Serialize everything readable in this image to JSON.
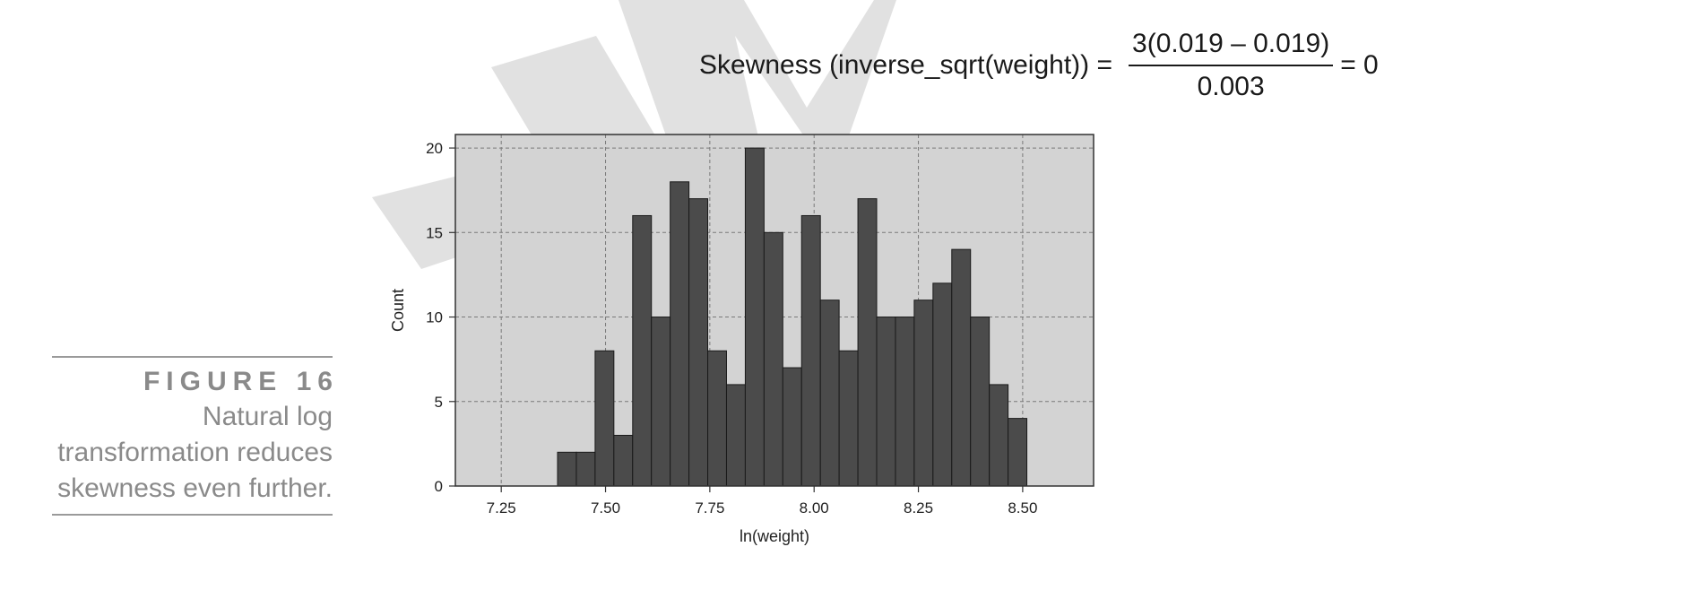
{
  "formula": {
    "lhs": "Skewness (inverse_sqrt(weight)) =",
    "numerator": "3(0.019 – 0.019)",
    "denominator": "0.003",
    "rhs": "= 0"
  },
  "figure": {
    "label": "FIGURE 16",
    "caption_lines": [
      "Natural log",
      "transformation reduces",
      "skewness even further."
    ]
  },
  "chart_data": {
    "type": "bar",
    "xlabel": "ln(weight)",
    "ylabel": "Count",
    "xlim": [
      7.14,
      8.67
    ],
    "ylim": [
      0,
      20.8
    ],
    "xticks": [
      7.25,
      7.5,
      7.75,
      8.0,
      8.25,
      8.5
    ],
    "xtick_labels": [
      "7.25",
      "7.50",
      "7.75",
      "8.00",
      "8.25",
      "8.50"
    ],
    "yticks": [
      0,
      5,
      10,
      15,
      20
    ],
    "ytick_labels": [
      "0",
      "5",
      "10",
      "15",
      "20"
    ],
    "grid": true,
    "bin_start": 7.385,
    "bin_width": 0.045,
    "counts": [
      2,
      2,
      8,
      3,
      16,
      10,
      18,
      17,
      8,
      6,
      20,
      15,
      7,
      16,
      11,
      8,
      17,
      10,
      10,
      11,
      12,
      14,
      10,
      6,
      4
    ],
    "colors": {
      "plot_bg": "#d3d3d3",
      "bar": "#4b4b4b",
      "bar_edge": "#1a1a1a",
      "grid": "#7a7a7a"
    }
  }
}
